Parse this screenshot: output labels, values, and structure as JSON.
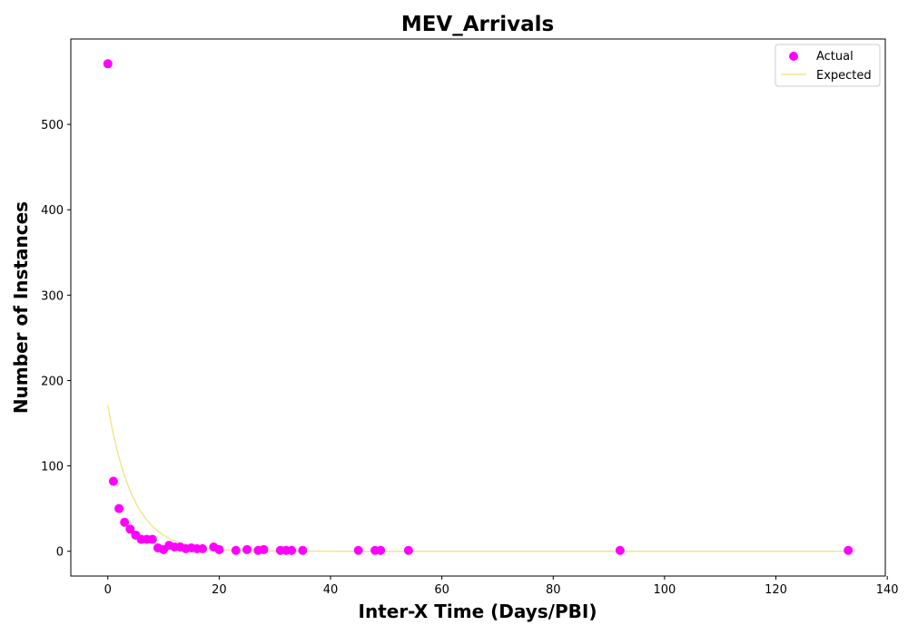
{
  "chart_data": {
    "type": "scatter",
    "title": "MEV_Arrivals",
    "xlabel": "Inter-X Time (Days/PBI)",
    "ylabel": "Number of Instances",
    "xlim": [
      -6.65,
      139.65
    ],
    "ylim": [
      -29,
      600
    ],
    "xticks": [
      0,
      20,
      40,
      60,
      80,
      100,
      120,
      140
    ],
    "yticks": [
      0,
      100,
      200,
      300,
      400,
      500
    ],
    "grid": false,
    "legend_position": "top-right",
    "series": [
      {
        "name": "Actual",
        "kind": "scatter",
        "color": "#ff00ff",
        "points": [
          [
            0,
            571
          ],
          [
            1,
            82
          ],
          [
            2,
            50
          ],
          [
            3,
            34
          ],
          [
            4,
            26
          ],
          [
            5,
            19
          ],
          [
            6,
            14
          ],
          [
            7,
            14
          ],
          [
            8,
            14
          ],
          [
            9,
            4
          ],
          [
            10,
            2
          ],
          [
            11,
            7
          ],
          [
            12,
            5
          ],
          [
            13,
            5
          ],
          [
            14,
            3
          ],
          [
            15,
            4
          ],
          [
            16,
            3
          ],
          [
            17,
            3
          ],
          [
            19,
            5
          ],
          [
            20,
            2
          ],
          [
            23,
            1
          ],
          [
            25,
            2
          ],
          [
            27,
            1
          ],
          [
            28,
            2
          ],
          [
            31,
            1
          ],
          [
            32,
            1
          ],
          [
            33,
            1
          ],
          [
            35,
            1
          ],
          [
            45,
            1
          ],
          [
            48,
            1
          ],
          [
            49,
            1
          ],
          [
            54,
            1
          ],
          [
            92,
            1
          ],
          [
            133,
            1
          ]
        ]
      },
      {
        "name": "Expected",
        "kind": "line",
        "color": "#f0e68c",
        "model": "exponential",
        "amplitude": 171,
        "rate": 0.22,
        "x_range": [
          0,
          133
        ]
      }
    ]
  }
}
